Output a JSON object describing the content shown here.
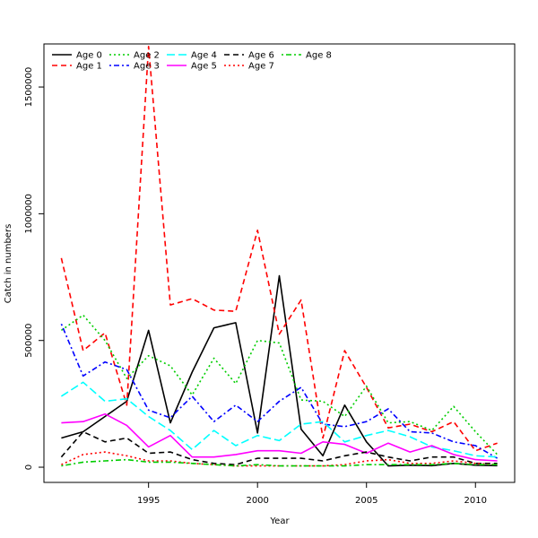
{
  "chart_data": {
    "type": "line",
    "title": "",
    "xlabel": "Year",
    "ylabel": "Catch in numbers",
    "xlim": [
      1990.2,
      2011.8
    ],
    "ylim": [
      -60000,
      1670000
    ],
    "x_ticks": [
      1995,
      2000,
      2005,
      2010
    ],
    "y_ticks": [
      0,
      500000,
      1000000,
      1500000
    ],
    "grid": false,
    "legend_position": "top-left",
    "x": [
      1991,
      1992,
      1993,
      1994,
      1995,
      1996,
      1997,
      1998,
      1999,
      2000,
      2001,
      2002,
      2003,
      2004,
      2005,
      2006,
      2007,
      2008,
      2009,
      2010,
      2011
    ],
    "series": [
      {
        "name": "Age 0",
        "color": "#000000",
        "dash": "solid",
        "values": [
          115000,
          140000,
          200000,
          260000,
          540000,
          175000,
          375000,
          550000,
          570000,
          135000,
          755000,
          150000,
          45000,
          245000,
          100000,
          5000,
          8000,
          6000,
          15000,
          8000,
          6000
        ]
      },
      {
        "name": "Age 1",
        "color": "#ff0000",
        "dash": "dashed",
        "values": [
          825000,
          460000,
          530000,
          245000,
          1660000,
          640000,
          665000,
          620000,
          615000,
          935000,
          525000,
          660000,
          115000,
          460000,
          315000,
          155000,
          170000,
          140000,
          180000,
          65000,
          95000
        ]
      },
      {
        "name": "Age 2",
        "color": "#00cd00",
        "dash": "dotted",
        "values": [
          540000,
          600000,
          500000,
          350000,
          440000,
          400000,
          285000,
          430000,
          330000,
          500000,
          490000,
          265000,
          260000,
          200000,
          320000,
          175000,
          180000,
          145000,
          240000,
          140000,
          50000
        ]
      },
      {
        "name": "Age 3",
        "color": "#0000ff",
        "dash": "dotdash",
        "values": [
          565000,
          360000,
          415000,
          385000,
          225000,
          195000,
          280000,
          180000,
          245000,
          180000,
          260000,
          315000,
          170000,
          160000,
          180000,
          230000,
          140000,
          135000,
          100000,
          85000,
          35000
        ]
      },
      {
        "name": "Age 4",
        "color": "#00ffff",
        "dash": "longdash",
        "values": [
          280000,
          335000,
          260000,
          270000,
          200000,
          145000,
          70000,
          145000,
          85000,
          125000,
          105000,
          170000,
          180000,
          100000,
          125000,
          145000,
          120000,
          80000,
          65000,
          45000,
          40000
        ]
      },
      {
        "name": "Age 5",
        "color": "#ff00ff",
        "dash": "solid",
        "values": [
          175000,
          180000,
          210000,
          165000,
          80000,
          125000,
          40000,
          40000,
          50000,
          65000,
          65000,
          55000,
          100000,
          90000,
          55000,
          95000,
          60000,
          85000,
          50000,
          30000,
          25000
        ]
      },
      {
        "name": "Age 6",
        "color": "#000000",
        "dash": "dashed",
        "values": [
          40000,
          140000,
          100000,
          115000,
          55000,
          60000,
          30000,
          15000,
          10000,
          35000,
          35000,
          35000,
          25000,
          45000,
          60000,
          40000,
          25000,
          40000,
          40000,
          15000,
          15000
        ]
      },
      {
        "name": "Age 7",
        "color": "#ff0000",
        "dash": "dotted",
        "values": [
          10000,
          50000,
          60000,
          45000,
          25000,
          25000,
          15000,
          10000,
          5000,
          5000,
          5000,
          5000,
          5000,
          10000,
          25000,
          30000,
          15000,
          15000,
          25000,
          15000,
          10000
        ]
      },
      {
        "name": "Age 8",
        "color": "#00cd00",
        "dash": "dotdash",
        "values": [
          5000,
          20000,
          25000,
          30000,
          20000,
          20000,
          15000,
          10000,
          5000,
          10000,
          5000,
          5000,
          5000,
          5000,
          10000,
          10000,
          10000,
          10000,
          15000,
          10000,
          10000
        ]
      }
    ]
  }
}
